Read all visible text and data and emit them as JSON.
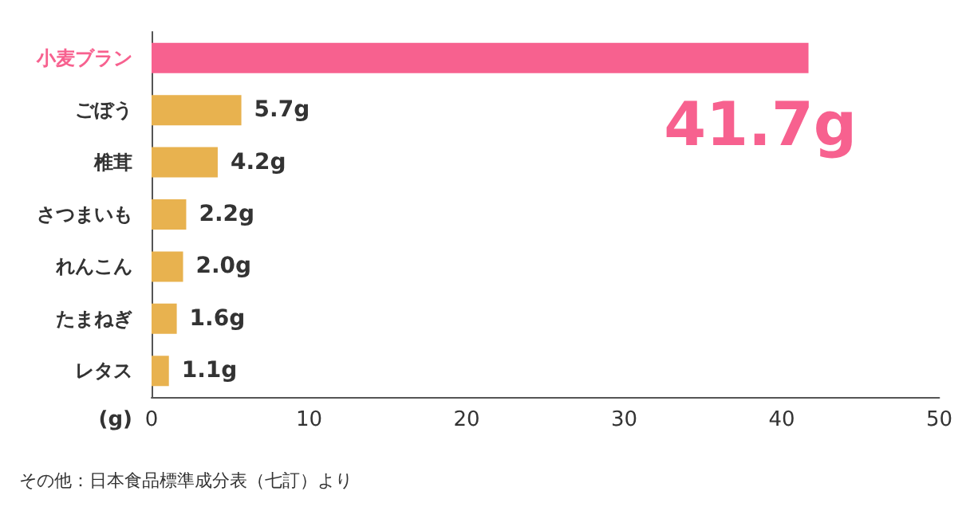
{
  "chart_data": {
    "type": "bar",
    "orientation": "horizontal",
    "categories": [
      "小麦ブラン",
      "ごぼう",
      "椎茸",
      "さつまいも",
      "れんこん",
      "たまねぎ",
      "レタス"
    ],
    "values": [
      41.7,
      5.7,
      4.2,
      2.2,
      2.0,
      1.6,
      1.1
    ],
    "value_labels": [
      "41.7g",
      "5.7g",
      "4.2g",
      "2.2g",
      "2.0g",
      "1.6g",
      "1.1g"
    ],
    "colors": [
      "#f7618f",
      "#e8b24f",
      "#e8b24f",
      "#e8b24f",
      "#e8b24f",
      "#e8b24f",
      "#e8b24f"
    ],
    "xlabel": "(g)",
    "xlim": [
      0,
      50
    ],
    "xticks": [
      0,
      10,
      20,
      30,
      40,
      50
    ],
    "grid": false,
    "annotations": [
      "その他：日本食品標準成分表（七訂）より"
    ]
  }
}
